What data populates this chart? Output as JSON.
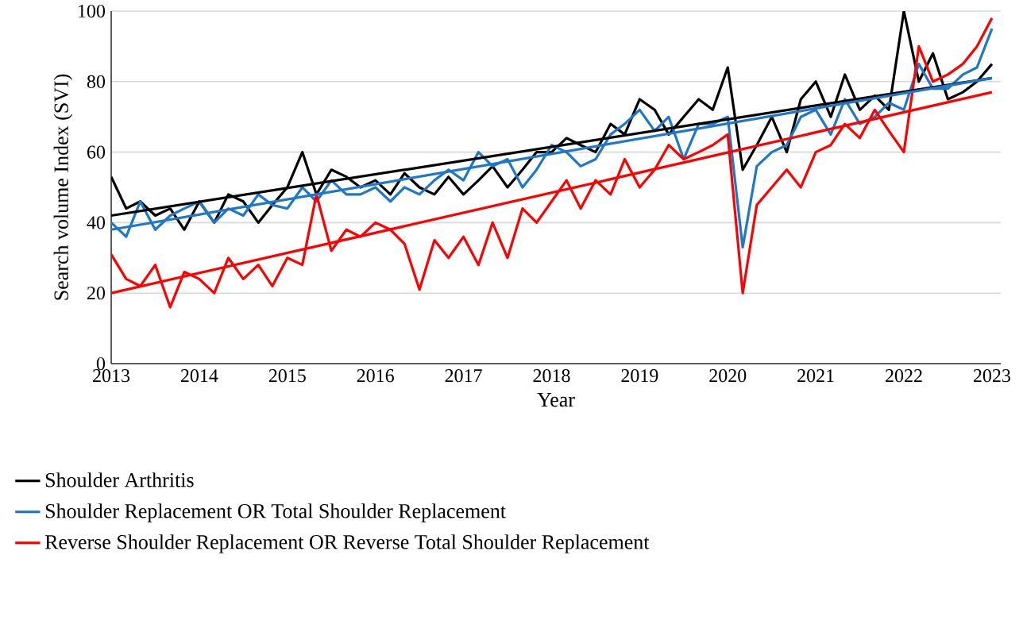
{
  "chart_data": {
    "type": "line",
    "xlabel": "Year",
    "ylabel": "Search volume Index (SVI)",
    "xlim": [
      2013,
      2023.1
    ],
    "ylim": [
      0,
      100
    ],
    "xticks": [
      2013,
      2014,
      2015,
      2016,
      2017,
      2018,
      2019,
      2020,
      2021,
      2022,
      2023
    ],
    "yticks": [
      0,
      20,
      40,
      60,
      80,
      100
    ],
    "grid": "y",
    "legend": "bottom",
    "marker": "none",
    "line_style": "solid",
    "series": [
      {
        "name": "Shoulder Arthritis",
        "color": "#000000",
        "x": [
          2013.0,
          2013.17,
          2013.33,
          2013.5,
          2013.67,
          2013.83,
          2014.0,
          2014.17,
          2014.33,
          2014.5,
          2014.67,
          2014.83,
          2015.0,
          2015.17,
          2015.33,
          2015.5,
          2015.67,
          2015.83,
          2016.0,
          2016.17,
          2016.33,
          2016.5,
          2016.67,
          2016.83,
          2017.0,
          2017.17,
          2017.33,
          2017.5,
          2017.67,
          2017.83,
          2018.0,
          2018.17,
          2018.33,
          2018.5,
          2018.67,
          2018.83,
          2019.0,
          2019.17,
          2019.33,
          2019.5,
          2019.67,
          2019.83,
          2020.0,
          2020.17,
          2020.33,
          2020.5,
          2020.67,
          2020.83,
          2021.0,
          2021.17,
          2021.33,
          2021.5,
          2021.67,
          2021.83,
          2022.0,
          2022.17,
          2022.33,
          2022.5,
          2022.67,
          2022.83,
          2023.0
        ],
        "values": [
          53,
          44,
          46,
          42,
          44,
          38,
          46,
          40,
          48,
          46,
          40,
          45,
          50,
          60,
          48,
          55,
          53,
          50,
          52,
          48,
          54,
          50,
          48,
          53,
          48,
          52,
          56,
          50,
          55,
          60,
          60,
          64,
          62,
          60,
          68,
          65,
          75,
          72,
          65,
          70,
          75,
          72,
          84,
          55,
          62,
          70,
          60,
          75,
          80,
          70,
          82,
          72,
          76,
          72,
          100,
          80,
          88,
          75,
          77,
          80,
          85
        ]
      },
      {
        "name": "Shoulder Replacement OR Total Shoulder Replacement",
        "color": "#1f77c8",
        "x": [
          2013.0,
          2013.17,
          2013.33,
          2013.5,
          2013.67,
          2013.83,
          2014.0,
          2014.17,
          2014.33,
          2014.5,
          2014.67,
          2014.83,
          2015.0,
          2015.17,
          2015.33,
          2015.5,
          2015.67,
          2015.83,
          2016.0,
          2016.17,
          2016.33,
          2016.5,
          2016.67,
          2016.83,
          2017.0,
          2017.17,
          2017.33,
          2017.5,
          2017.67,
          2017.83,
          2018.0,
          2018.17,
          2018.33,
          2018.5,
          2018.67,
          2018.83,
          2019.0,
          2019.17,
          2019.33,
          2019.5,
          2019.67,
          2019.83,
          2020.0,
          2020.17,
          2020.33,
          2020.5,
          2020.67,
          2020.83,
          2021.0,
          2021.17,
          2021.33,
          2021.5,
          2021.67,
          2021.83,
          2022.0,
          2022.17,
          2022.33,
          2022.5,
          2022.67,
          2022.83,
          2023.0
        ],
        "values": [
          40,
          36,
          46,
          38,
          42,
          44,
          46,
          40,
          44,
          42,
          48,
          45,
          44,
          50,
          46,
          52,
          48,
          48,
          50,
          46,
          50,
          48,
          52,
          55,
          52,
          60,
          56,
          58,
          50,
          55,
          62,
          60,
          56,
          58,
          65,
          68,
          72,
          66,
          70,
          58,
          68,
          68,
          70,
          33,
          56,
          60,
          62,
          70,
          72,
          65,
          75,
          68,
          70,
          74,
          72,
          85,
          78,
          78,
          82,
          84,
          95
        ]
      },
      {
        "name": "Reverse Shoulder Replacement OR Reverse Total Shoulder Replacement",
        "color": "#ff0000",
        "x": [
          2013.0,
          2013.17,
          2013.33,
          2013.5,
          2013.67,
          2013.83,
          2014.0,
          2014.17,
          2014.33,
          2014.5,
          2014.67,
          2014.83,
          2015.0,
          2015.17,
          2015.33,
          2015.5,
          2015.67,
          2015.83,
          2016.0,
          2016.17,
          2016.33,
          2016.5,
          2016.67,
          2016.83,
          2017.0,
          2017.17,
          2017.33,
          2017.5,
          2017.67,
          2017.83,
          2018.0,
          2018.17,
          2018.33,
          2018.5,
          2018.67,
          2018.83,
          2019.0,
          2019.17,
          2019.33,
          2019.5,
          2019.67,
          2019.83,
          2020.0,
          2020.17,
          2020.33,
          2020.5,
          2020.67,
          2020.83,
          2021.0,
          2021.17,
          2021.33,
          2021.5,
          2021.67,
          2021.83,
          2022.0,
          2022.17,
          2022.33,
          2022.5,
          2022.67,
          2022.83,
          2023.0
        ],
        "values": [
          31,
          24,
          22,
          28,
          16,
          26,
          24,
          20,
          30,
          24,
          28,
          22,
          30,
          28,
          48,
          32,
          38,
          36,
          40,
          38,
          34,
          21,
          35,
          30,
          36,
          28,
          40,
          30,
          44,
          40,
          46,
          52,
          44,
          52,
          48,
          58,
          50,
          55,
          62,
          58,
          60,
          62,
          65,
          20,
          45,
          50,
          55,
          50,
          60,
          62,
          68,
          64,
          72,
          66,
          60,
          90,
          80,
          82,
          85,
          90,
          98
        ]
      },
      {
        "type": "line",
        "color": "#000000",
        "x": [
          2013.0,
          2023.0
        ],
        "values": [
          42,
          81
        ]
      },
      {
        "type": "line",
        "color": "#1f77c8",
        "x": [
          2013.0,
          2023.0
        ],
        "values": [
          38,
          81
        ]
      },
      {
        "type": "line",
        "color": "#ff0000",
        "x": [
          2013.0,
          2023.0
        ],
        "values": [
          20,
          77
        ]
      }
    ]
  }
}
